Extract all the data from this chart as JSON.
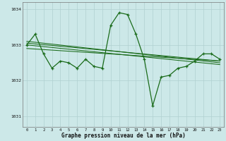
{
  "xlabel": "Graphe pression niveau de la mer (hPa)",
  "background_color": "#cce8e8",
  "grid_color": "#b0d0d0",
  "line_color": "#1a6b1a",
  "ylim": [
    1030.7,
    1034.2
  ],
  "yticks": [
    1031,
    1032,
    1033,
    1034
  ],
  "xticks": [
    0,
    1,
    2,
    3,
    4,
    5,
    6,
    7,
    8,
    9,
    10,
    11,
    12,
    13,
    14,
    15,
    16,
    17,
    18,
    19,
    20,
    21,
    22,
    23
  ],
  "main_series": [
    1033.0,
    1033.3,
    1032.75,
    1032.35,
    1032.55,
    1032.5,
    1032.35,
    1032.6,
    1032.4,
    1032.35,
    1033.55,
    1033.9,
    1033.85,
    1033.3,
    1032.6,
    1031.3,
    1032.1,
    1032.15,
    1032.35,
    1032.4,
    1032.55,
    1032.75,
    1032.75,
    1032.6
  ],
  "trend_lines": [
    {
      "x0": 0,
      "y0": 1033.1,
      "x1": 23,
      "y1": 1032.5
    },
    {
      "x0": 0,
      "y0": 1033.05,
      "x1": 23,
      "y1": 1032.55
    },
    {
      "x0": 0,
      "y0": 1033.0,
      "x1": 23,
      "y1": 1032.45
    },
    {
      "x0": 0,
      "y0": 1032.9,
      "x1": 23,
      "y1": 1032.55
    }
  ]
}
